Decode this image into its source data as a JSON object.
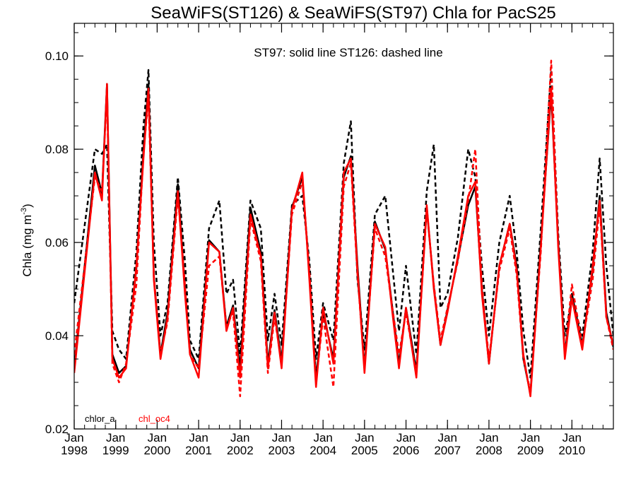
{
  "chart_data": {
    "type": "line",
    "title": "SeaWiFS(ST126) & SeaWiFS(ST97)  Chla for PacS25",
    "annotation": "ST97: solid line   ST126: dashed line",
    "ylabel_main": "Chla (mg m",
    "ylabel_sup": "-3",
    "ylabel_close": ")",
    "xlim": [
      1998.0,
      2011.0
    ],
    "ylim": [
      0.02,
      0.107
    ],
    "yticks": [
      {
        "value": 0.02,
        "label": "0.02"
      },
      {
        "value": 0.04,
        "label": "0.04"
      },
      {
        "value": 0.06,
        "label": "0.06"
      },
      {
        "value": 0.08,
        "label": "0.08"
      },
      {
        "value": 0.1,
        "label": "0.10"
      }
    ],
    "y_minor_step": 0.005,
    "x_minor_step": 0.25,
    "xticks": [
      {
        "value": 1998,
        "month": "Jan",
        "year": "1998"
      },
      {
        "value": 1999,
        "month": "Jan",
        "year": "1999"
      },
      {
        "value": 2000,
        "month": "Jan",
        "year": "2000"
      },
      {
        "value": 2001,
        "month": "Jan",
        "year": "2001"
      },
      {
        "value": 2002,
        "month": "Jan",
        "year": "2002"
      },
      {
        "value": 2003,
        "month": "Jan",
        "year": "2003"
      },
      {
        "value": 2004,
        "month": "Jan",
        "year": "2004"
      },
      {
        "value": 2005,
        "month": "Jan",
        "year": "2005"
      },
      {
        "value": 2006,
        "month": "Jan",
        "year": "2006"
      },
      {
        "value": 2007,
        "month": "Jan",
        "year": "2007"
      },
      {
        "value": 2008,
        "month": "Jan",
        "year": "2008"
      },
      {
        "value": 2009,
        "month": "Jan",
        "year": "2009"
      },
      {
        "value": 2010,
        "month": "Jan",
        "year": "2010"
      }
    ],
    "legend": [
      {
        "label": "chlor_a",
        "color": "#000000"
      },
      {
        "label": "chl_oc4",
        "color": "#ff0000"
      }
    ],
    "x": [
      1998.0,
      1998.5,
      1998.67,
      1998.79,
      1998.92,
      1999.08,
      1999.25,
      1999.5,
      1999.67,
      1999.79,
      1999.92,
      2000.08,
      2000.25,
      2000.5,
      2000.67,
      2000.79,
      2001.0,
      2001.25,
      2001.5,
      2001.67,
      2001.83,
      2002.0,
      2002.25,
      2002.5,
      2002.67,
      2002.83,
      2003.0,
      2003.25,
      2003.5,
      2003.67,
      2003.83,
      2004.0,
      2004.25,
      2004.5,
      2004.67,
      2004.83,
      2005.0,
      2005.25,
      2005.5,
      2005.67,
      2005.83,
      2006.0,
      2006.25,
      2006.5,
      2006.67,
      2006.83,
      2007.0,
      2007.25,
      2007.5,
      2007.67,
      2007.83,
      2008.0,
      2008.25,
      2008.5,
      2008.67,
      2008.83,
      2009.0,
      2009.25,
      2009.5,
      2009.67,
      2009.83,
      2010.0,
      2010.25,
      2010.5,
      2010.67,
      2010.83,
      2011.0
    ],
    "series": [
      {
        "color": "#000000",
        "dash": "solid",
        "values": [
          0.033,
          0.0765,
          0.0705,
          0.094,
          0.036,
          0.032,
          0.0335,
          0.0545,
          0.08,
          0.094,
          0.0525,
          0.036,
          0.045,
          0.0725,
          0.05,
          0.037,
          0.033,
          0.0605,
          0.058,
          0.042,
          0.0465,
          0.033,
          0.0675,
          0.058,
          0.034,
          0.0455,
          0.0345,
          0.0675,
          0.074,
          0.053,
          0.031,
          0.045,
          0.035,
          0.074,
          0.0785,
          0.055,
          0.033,
          0.0645,
          0.0585,
          0.046,
          0.034,
          0.046,
          0.0325,
          0.0675,
          0.0505,
          0.038,
          0.0455,
          0.0565,
          0.068,
          0.072,
          0.05,
          0.034,
          0.055,
          0.064,
          0.055,
          0.035,
          0.0275,
          0.06,
          0.092,
          0.06,
          0.036,
          0.049,
          0.038,
          0.054,
          0.07,
          0.045,
          0.0375
        ]
      },
      {
        "color": "#000000",
        "dash": "dashed",
        "values": [
          0.047,
          0.08,
          0.079,
          0.081,
          0.041,
          0.037,
          0.035,
          0.058,
          0.085,
          0.097,
          0.06,
          0.04,
          0.047,
          0.074,
          0.056,
          0.039,
          0.035,
          0.063,
          0.069,
          0.049,
          0.052,
          0.036,
          0.069,
          0.063,
          0.039,
          0.049,
          0.038,
          0.068,
          0.07,
          0.056,
          0.035,
          0.047,
          0.039,
          0.077,
          0.086,
          0.052,
          0.037,
          0.066,
          0.07,
          0.055,
          0.041,
          0.055,
          0.036,
          0.071,
          0.081,
          0.046,
          0.049,
          0.061,
          0.08,
          0.074,
          0.055,
          0.04,
          0.06,
          0.07,
          0.058,
          0.041,
          0.031,
          0.063,
          0.097,
          0.062,
          0.04,
          0.048,
          0.04,
          0.058,
          0.078,
          0.055,
          0.04
        ]
      },
      {
        "color": "#ff0000",
        "dash": "solid",
        "values": [
          0.032,
          0.075,
          0.069,
          0.094,
          0.035,
          0.031,
          0.033,
          0.055,
          0.078,
          0.093,
          0.052,
          0.035,
          0.044,
          0.071,
          0.049,
          0.036,
          0.031,
          0.06,
          0.058,
          0.041,
          0.046,
          0.031,
          0.066,
          0.057,
          0.033,
          0.045,
          0.033,
          0.067,
          0.075,
          0.052,
          0.029,
          0.046,
          0.034,
          0.075,
          0.078,
          0.054,
          0.032,
          0.064,
          0.059,
          0.045,
          0.033,
          0.046,
          0.031,
          0.068,
          0.05,
          0.038,
          0.045,
          0.057,
          0.07,
          0.073,
          0.049,
          0.034,
          0.055,
          0.064,
          0.054,
          0.036,
          0.027,
          0.059,
          0.093,
          0.059,
          0.035,
          0.048,
          0.037,
          0.055,
          0.069,
          0.044,
          0.038
        ]
      },
      {
        "color": "#ff0000",
        "dash": "dashed",
        "values": [
          0.036,
          0.074,
          0.071,
          0.092,
          0.034,
          0.03,
          0.034,
          0.051,
          0.079,
          0.091,
          0.053,
          0.036,
          0.043,
          0.07,
          0.051,
          0.036,
          0.033,
          0.055,
          0.057,
          0.042,
          0.045,
          0.027,
          0.065,
          0.056,
          0.032,
          0.044,
          0.034,
          0.066,
          0.073,
          0.054,
          0.03,
          0.044,
          0.029,
          0.072,
          0.077,
          0.053,
          0.033,
          0.063,
          0.057,
          0.046,
          0.036,
          0.045,
          0.032,
          0.067,
          0.051,
          0.039,
          0.046,
          0.056,
          0.069,
          0.08,
          0.051,
          0.035,
          0.054,
          0.063,
          0.053,
          0.035,
          0.028,
          0.058,
          0.099,
          0.06,
          0.036,
          0.051,
          0.038,
          0.052,
          0.068,
          0.044,
          0.037
        ]
      }
    ]
  }
}
